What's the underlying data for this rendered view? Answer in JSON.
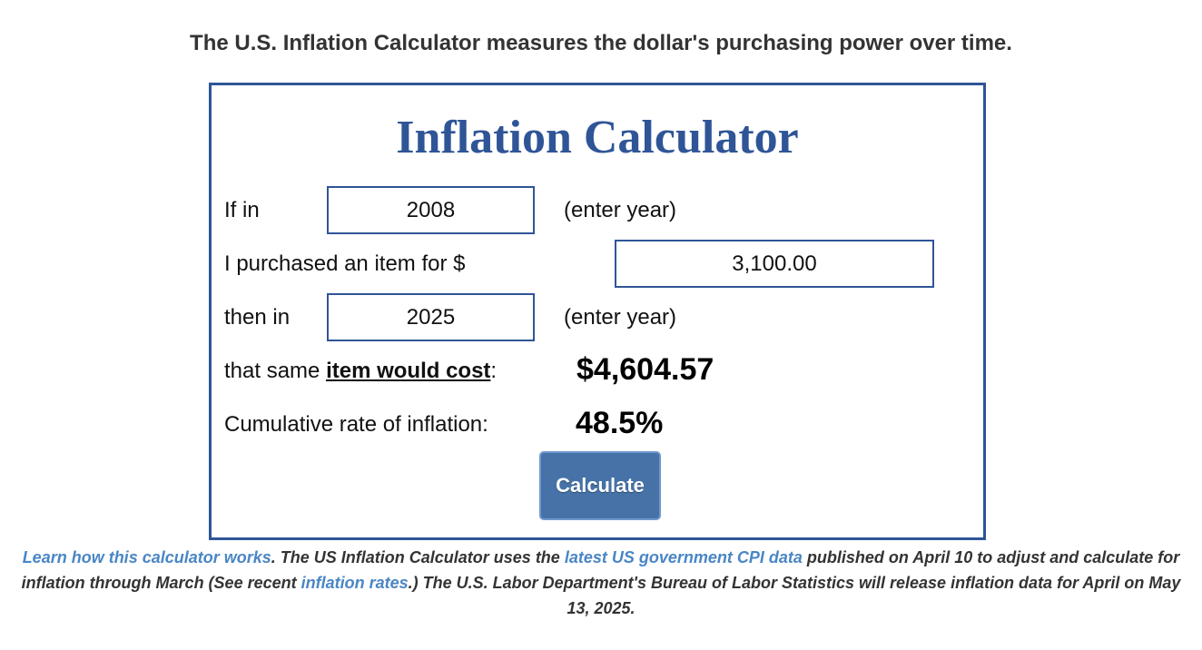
{
  "tagline": "The U.S. Inflation Calculator measures the dollar's purchasing power over time.",
  "calculator": {
    "title": "Inflation Calculator",
    "row1": {
      "label": "If in",
      "value": "2008",
      "hint": "(enter year)"
    },
    "row2": {
      "label": "I purchased an item for $",
      "value": "3,100.00"
    },
    "row3": {
      "label": "then in",
      "value": "2025",
      "hint": "(enter year)"
    },
    "row4": {
      "label_prefix": "that same ",
      "label_link": "item would cost",
      "label_suffix": ":",
      "result": "$4,604.57"
    },
    "row5": {
      "label": "Cumulative rate of inflation:",
      "result": "48.5%"
    },
    "button_label": "Calculate"
  },
  "footnote": {
    "link1": "Learn how this calculator works",
    "text1": ". The US Inflation Calculator uses the ",
    "link2": "latest US government CPI data",
    "text2": " published on April 10 to adjust and calculate for inflation through March (See recent ",
    "link3": "inflation rates",
    "text3": ".) The U.S. Labor Department's Bureau of Labor Statistics will release inflation data for April on May 13, 2025."
  },
  "colors": {
    "accent": "#2f5597",
    "button": "#4672a8",
    "link": "#4a86c5"
  }
}
